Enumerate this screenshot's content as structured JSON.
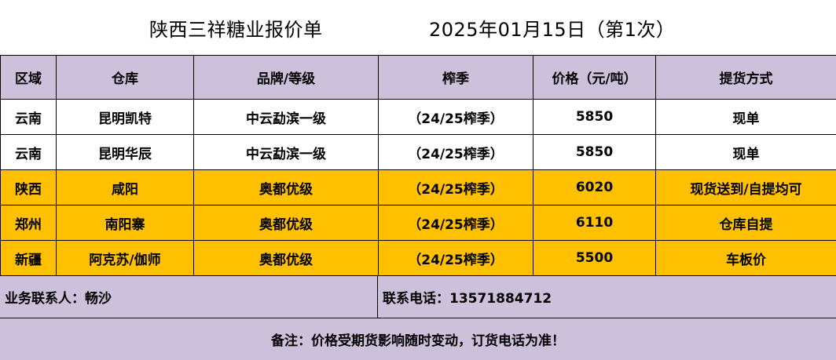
{
  "title": {
    "main": "陕西三祥糖业报价单",
    "date": "2025年01月15日（第1次）"
  },
  "table": {
    "headers": [
      "区域",
      "仓库",
      "品牌/等级",
      "榨季",
      "价格（元/吨）",
      "提货方式"
    ],
    "rows": [
      {
        "region": "云南",
        "warehouse": "昆明凯特",
        "brand": "中云勐滨一级",
        "season": "（24/25榨季）",
        "price": "5850",
        "delivery": "现单",
        "highlight": false
      },
      {
        "region": "云南",
        "warehouse": "昆明华辰",
        "brand": "中云勐滨一级",
        "season": "（24/25榨季）",
        "price": "5850",
        "delivery": "现单",
        "highlight": false
      },
      {
        "region": "陕西",
        "warehouse": "咸阳",
        "brand": "奥都优级",
        "season": "（24/25榨季）",
        "price": "6020",
        "delivery": "现货送到/自提均可",
        "highlight": true
      },
      {
        "region": "郑州",
        "warehouse": "南阳寨",
        "brand": "奥都优级",
        "season": "（24/25榨季）",
        "price": "6110",
        "delivery": "仓库自提",
        "highlight": true
      },
      {
        "region": "新疆",
        "warehouse": "阿克苏/伽师",
        "brand": "奥都优级",
        "season": "（24/25榨季）",
        "price": "5500",
        "delivery": "车板价",
        "highlight": true
      }
    ]
  },
  "contact": {
    "person": "业务联系人：畅沙",
    "phone": "联系电话：13571884712"
  },
  "note": "备注：价格受期货影响随时变动，订货电话为准！",
  "colors": {
    "header_bg": "#ccc0da",
    "highlight_bg": "#ffc000",
    "plain_bg": "#ffffff"
  }
}
